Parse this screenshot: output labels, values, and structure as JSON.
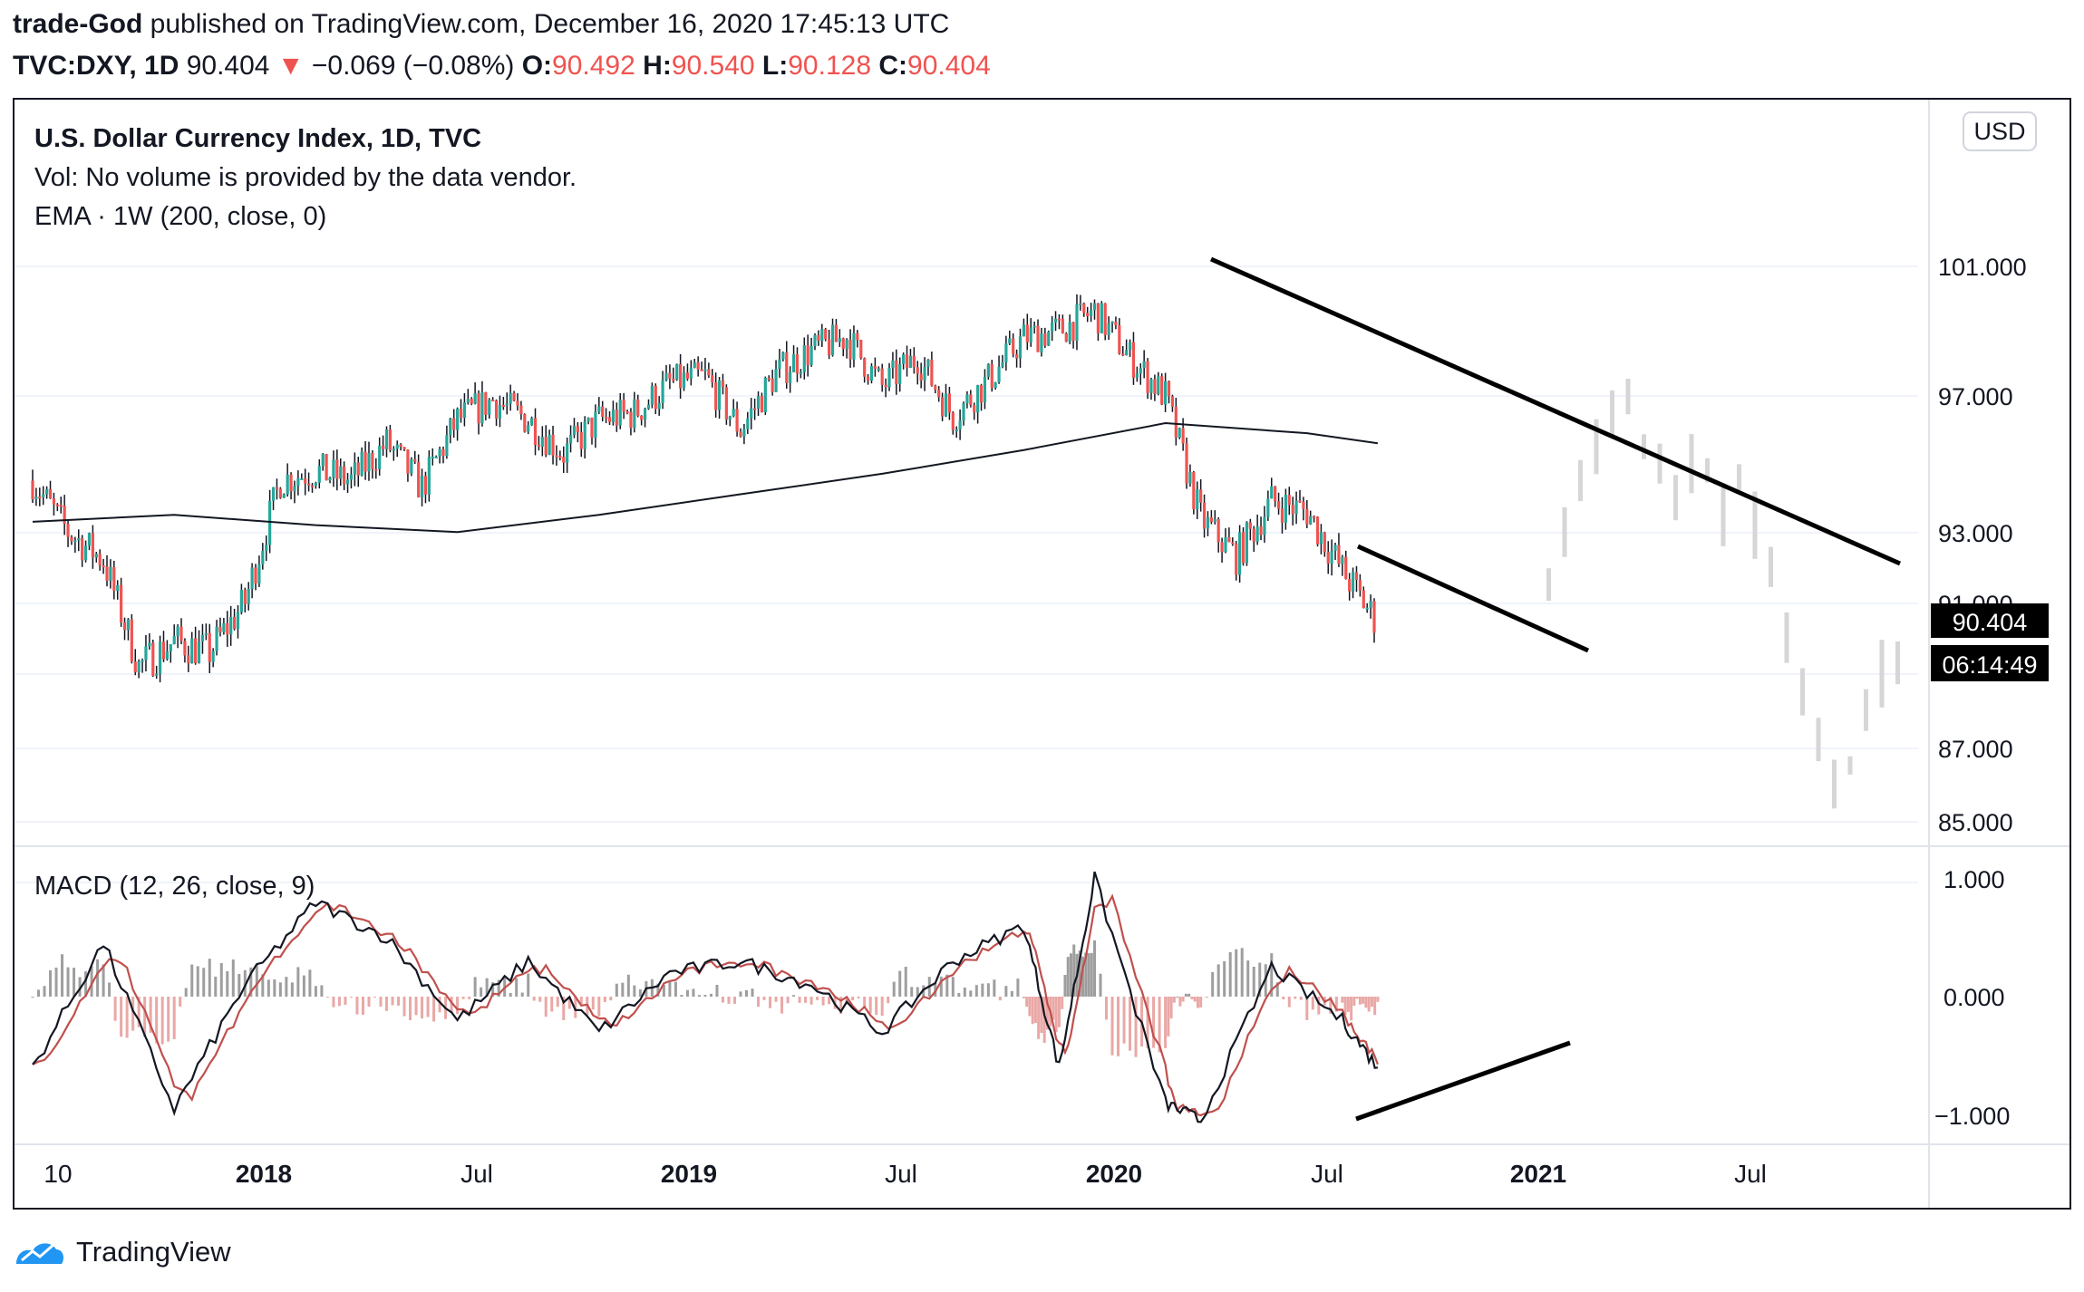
{
  "header": {
    "author": "trade-God",
    "published_text": " published on TradingView.com, December 16, 2020 17:45:13 UTC",
    "symbol": "TVC:DXY, 1D",
    "last": "90.404",
    "change_arrow": "▼",
    "change": "−0.069 (−0.08%)",
    "o_label": "O:",
    "o_value": "90.492",
    "h_label": "H:",
    "h_value": "90.540",
    "l_label": "L:",
    "l_value": "90.128",
    "c_label": "C:",
    "c_value": "90.404"
  },
  "legend": {
    "title": "U.S. Dollar Currency Index, 1D, TVC",
    "vol": "Vol: No volume is provided by the data vendor.",
    "ema": "EMA · 1W (200, close, 0)",
    "macd": "MACD (12, 26, close, 9)"
  },
  "price_scale": {
    "currency_button": "USD",
    "ticks": [
      "101.000",
      "97.000",
      "93.000",
      "91.000",
      "87.000",
      "85.000"
    ],
    "last_price_label": "90.404",
    "countdown_label": "06:14:49"
  },
  "macd_scale": {
    "ticks": [
      "1.000",
      "0.000",
      "−1.000"
    ]
  },
  "time_axis": {
    "labels": [
      "10",
      "2018",
      "Jul",
      "2019",
      "Jul",
      "2020",
      "Jul",
      "2021",
      "Jul"
    ]
  },
  "footer": {
    "brand": "TradingView"
  },
  "colors": {
    "up": "#26a69a",
    "down": "#ef5350",
    "ema": "#131722",
    "macd": "#131722",
    "signal": "#c0504d",
    "ghost": "#d6d6d6"
  },
  "chart_data": [
    {
      "type": "line",
      "title": "U.S. Dollar Currency Index, 1D, TVC",
      "x_range": [
        "2017-10",
        "2021-10"
      ],
      "ylim": [
        84.5,
        104
      ],
      "y_scale": "log",
      "series": [
        {
          "name": "U.S. Dollar Currency Index",
          "x": [
            "2017-10",
            "2017-11",
            "2017-12",
            "2018-01",
            "2018-02",
            "2018-03",
            "2018-04",
            "2018-05",
            "2018-06",
            "2018-07",
            "2018-08",
            "2018-09",
            "2018-10",
            "2018-11",
            "2018-12",
            "2019-01",
            "2019-02",
            "2019-03",
            "2019-04",
            "2019-05",
            "2019-06",
            "2019-07",
            "2019-08",
            "2019-09",
            "2019-10",
            "2019-11",
            "2019-12",
            "2020-01",
            "2020-02",
            "2020-03",
            "2020-04",
            "2020-05",
            "2020-06",
            "2020-07",
            "2020-08",
            "2020-09",
            "2020-10",
            "2020-11",
            "2020-12"
          ],
          "values": [
            94.5,
            93.0,
            92.2,
            89.2,
            89.9,
            89.6,
            91.0,
            94.5,
            94.8,
            94.5,
            95.6,
            94.3,
            96.3,
            96.9,
            96.3,
            95.3,
            96.3,
            96.5,
            97.4,
            97.6,
            96.0,
            97.7,
            98.4,
            98.8,
            97.3,
            98.2,
            96.4,
            97.5,
            98.8,
            99.0,
            99.6,
            98.2,
            97.0,
            93.4,
            92.3,
            93.9,
            93.6,
            91.9,
            90.4
          ]
        },
        {
          "name": "EMA 1W (200, close, 0)",
          "x": [
            "2017-10",
            "2018-02",
            "2018-06",
            "2018-10",
            "2019-02",
            "2019-06",
            "2019-10",
            "2020-02",
            "2020-06",
            "2020-10",
            "2020-12"
          ],
          "values": [
            93.3,
            93.5,
            93.2,
            93.0,
            93.5,
            94.1,
            94.7,
            95.4,
            96.2,
            95.9,
            95.6
          ]
        }
      ],
      "annotations": [
        "downtrend resistance line",
        "falling wedge support line"
      ]
    },
    {
      "type": "line",
      "title": "MACD (12, 26, close, 9)",
      "ylim": [
        -1.15,
        1.15
      ],
      "series": [
        {
          "name": "MACD",
          "x": [
            "2017-10",
            "2017-12",
            "2018-02",
            "2018-04",
            "2018-06",
            "2018-08",
            "2018-10",
            "2018-12",
            "2019-02",
            "2019-04",
            "2019-06",
            "2019-08",
            "2019-10",
            "2019-12",
            "2020-02",
            "2020-03",
            "2020-04",
            "2020-06",
            "2020-07",
            "2020-09",
            "2020-11",
            "2020-12"
          ],
          "values": [
            -0.6,
            0.45,
            -0.95,
            0.1,
            0.8,
            0.5,
            -0.2,
            0.3,
            -0.3,
            0.2,
            0.3,
            0.1,
            -0.3,
            0.3,
            0.6,
            -0.6,
            1.0,
            -0.9,
            -1.05,
            0.25,
            -0.2,
            -0.6
          ]
        },
        {
          "name": "Signal",
          "x": [
            "2017-10",
            "2017-12",
            "2018-02",
            "2018-04",
            "2018-06",
            "2018-08",
            "2018-10",
            "2018-12",
            "2019-02",
            "2019-04",
            "2019-06",
            "2019-08",
            "2019-10",
            "2019-12",
            "2020-02",
            "2020-03",
            "2020-04",
            "2020-06",
            "2020-07",
            "2020-09",
            "2020-11",
            "2020-12"
          ],
          "values": [
            -0.5,
            0.4,
            -0.85,
            0.05,
            0.7,
            0.45,
            -0.15,
            0.25,
            -0.25,
            0.18,
            0.25,
            0.1,
            -0.25,
            0.25,
            0.5,
            -0.4,
            0.6,
            -0.8,
            -0.95,
            0.2,
            -0.1,
            -0.55
          ]
        }
      ],
      "annotations": [
        "rising support line on MACD"
      ]
    }
  ]
}
